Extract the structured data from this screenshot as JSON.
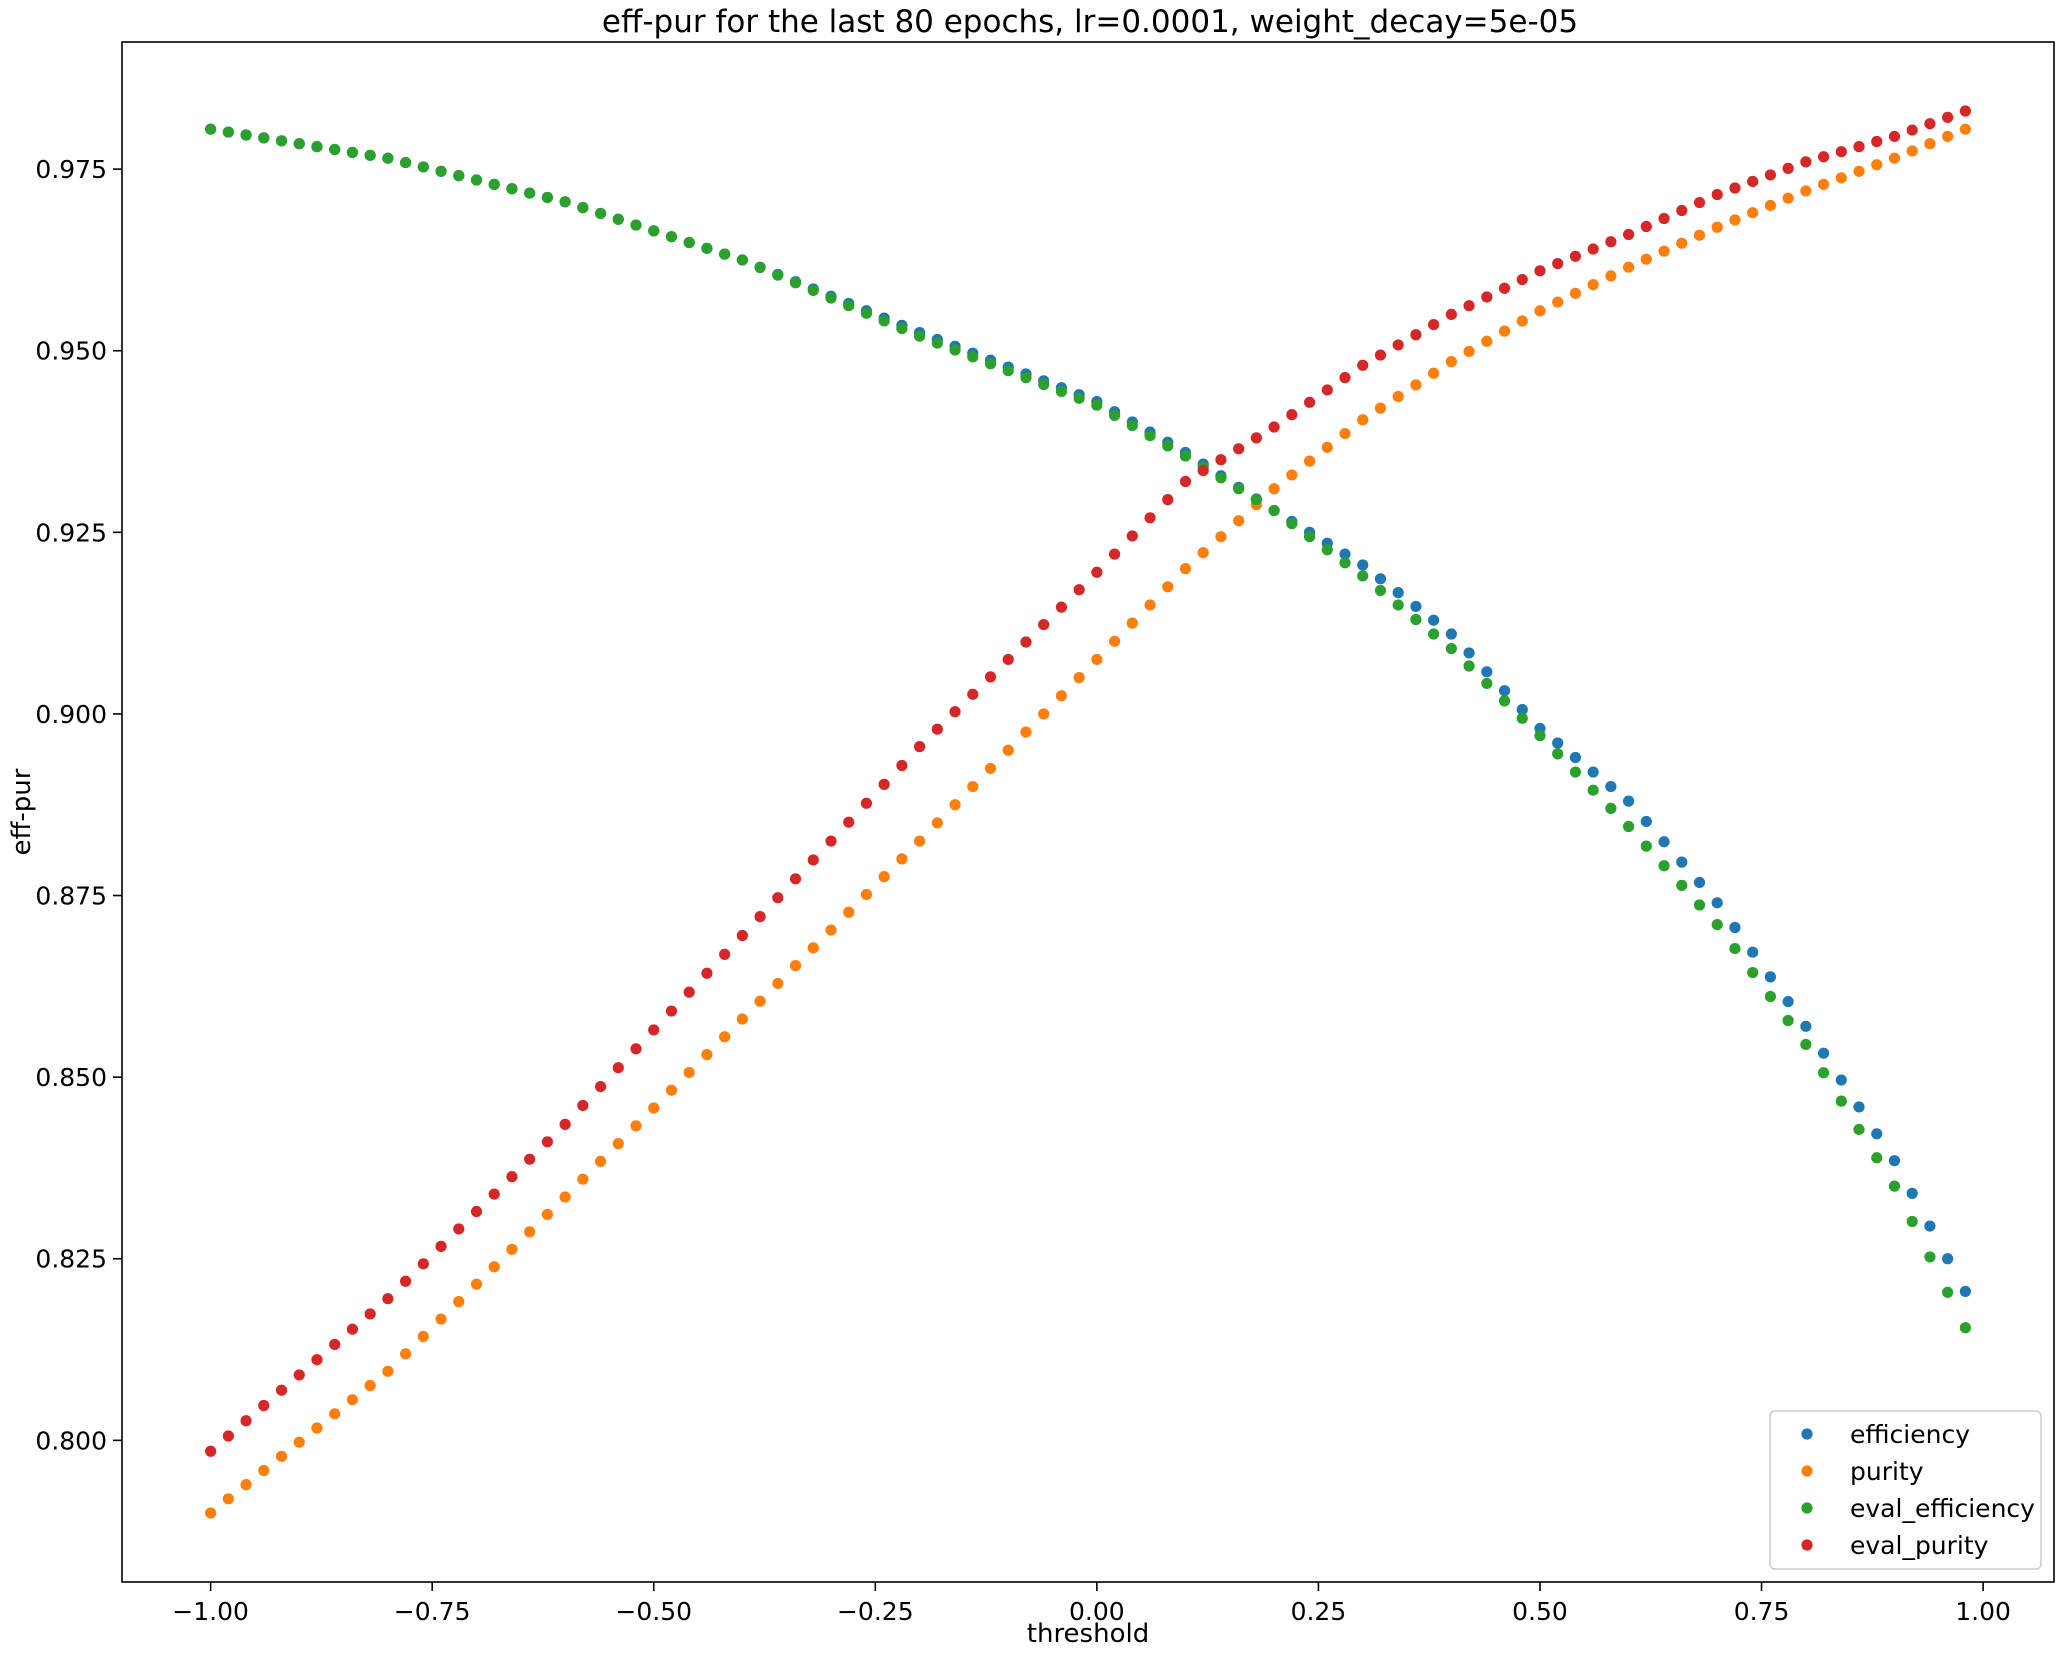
{
  "chart_data": {
    "type": "scatter",
    "title": "eff-pur for the last 80 epochs, lr=0.0001, weight_decay=5e-05",
    "xlabel": "threshold",
    "ylabel": "eff-pur",
    "xlim": [
      -1.1,
      1.08
    ],
    "ylim": [
      0.7805,
      0.9925
    ],
    "x_ticks": [
      -1.0,
      -0.75,
      -0.5,
      -0.25,
      0.0,
      0.25,
      0.5,
      0.75,
      1.0
    ],
    "x_tick_labels": [
      "−1.00",
      "−0.75",
      "−0.50",
      "−0.25",
      "0.00",
      "0.25",
      "0.50",
      "0.75",
      "1.00"
    ],
    "y_ticks": [
      0.8,
      0.825,
      0.85,
      0.875,
      0.9,
      0.925,
      0.95,
      0.975
    ],
    "y_tick_labels": [
      "0.800",
      "0.825",
      "0.850",
      "0.875",
      "0.900",
      "0.925",
      "0.950",
      "0.975"
    ],
    "grid": false,
    "legend_position": "lower-right",
    "x": {
      "start": -1.0,
      "step": 0.02,
      "count": 100
    },
    "series": [
      {
        "name": "efficiency",
        "color": "#1f77b4",
        "anchors": [
          [
            -1.0,
            0.9805
          ],
          [
            -0.8,
            0.9765
          ],
          [
            -0.6,
            0.9705
          ],
          [
            -0.4,
            0.9625
          ],
          [
            -0.2,
            0.9525
          ],
          [
            0.0,
            0.943
          ],
          [
            0.1,
            0.936
          ],
          [
            0.2,
            0.928
          ],
          [
            0.3,
            0.9205
          ],
          [
            0.4,
            0.911
          ],
          [
            0.5,
            0.898
          ],
          [
            0.6,
            0.888
          ],
          [
            0.7,
            0.874
          ],
          [
            0.8,
            0.857
          ],
          [
            0.9,
            0.8385
          ],
          [
            0.98,
            0.8205
          ]
        ]
      },
      {
        "name": "purity",
        "color": "#ff7f0e",
        "anchors": [
          [
            -1.0,
            0.79
          ],
          [
            -0.8,
            0.8095
          ],
          [
            -0.6,
            0.8335
          ],
          [
            -0.4,
            0.858
          ],
          [
            -0.2,
            0.8825
          ],
          [
            0.0,
            0.9075
          ],
          [
            0.1,
            0.92
          ],
          [
            0.2,
            0.931
          ],
          [
            0.3,
            0.9405
          ],
          [
            0.4,
            0.9485
          ],
          [
            0.5,
            0.9555
          ],
          [
            0.6,
            0.9615
          ],
          [
            0.7,
            0.967
          ],
          [
            0.8,
            0.972
          ],
          [
            0.9,
            0.9765
          ],
          [
            0.98,
            0.9805
          ]
        ]
      },
      {
        "name": "eval_efficiency",
        "color": "#2ca02c",
        "anchors": [
          [
            -1.0,
            0.9805
          ],
          [
            -0.8,
            0.9765
          ],
          [
            -0.6,
            0.9705
          ],
          [
            -0.4,
            0.9625
          ],
          [
            -0.2,
            0.952
          ],
          [
            0.0,
            0.9425
          ],
          [
            0.1,
            0.9355
          ],
          [
            0.2,
            0.928
          ],
          [
            0.3,
            0.919
          ],
          [
            0.4,
            0.909
          ],
          [
            0.5,
            0.897
          ],
          [
            0.6,
            0.8845
          ],
          [
            0.7,
            0.871
          ],
          [
            0.8,
            0.8545
          ],
          [
            0.9,
            0.835
          ],
          [
            0.98,
            0.8155
          ]
        ]
      },
      {
        "name": "eval_purity",
        "color": "#d62728",
        "anchors": [
          [
            -1.0,
            0.7985
          ],
          [
            -0.8,
            0.8195
          ],
          [
            -0.6,
            0.8435
          ],
          [
            -0.4,
            0.8695
          ],
          [
            -0.2,
            0.8955
          ],
          [
            0.0,
            0.9195
          ],
          [
            0.1,
            0.932
          ],
          [
            0.2,
            0.9395
          ],
          [
            0.3,
            0.948
          ],
          [
            0.4,
            0.955
          ],
          [
            0.5,
            0.961
          ],
          [
            0.6,
            0.966
          ],
          [
            0.7,
            0.9715
          ],
          [
            0.8,
            0.976
          ],
          [
            0.9,
            0.9795
          ],
          [
            0.98,
            0.983
          ]
        ]
      }
    ]
  }
}
